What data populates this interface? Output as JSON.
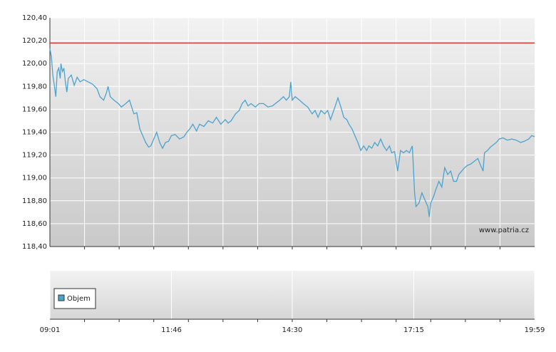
{
  "chart_data": {
    "type": "line",
    "x": [
      "09:01",
      "09:03",
      "09:05",
      "09:07",
      "09:09",
      "09:11",
      "09:13",
      "09:15",
      "09:16",
      "09:18",
      "09:20",
      "09:22",
      "09:24",
      "09:26",
      "09:30",
      "09:34",
      "09:38",
      "09:42",
      "09:47",
      "09:53",
      "09:59",
      "10:05",
      "10:09",
      "10:14",
      "10:18",
      "10:20",
      "10:23",
      "10:28",
      "10:34",
      "10:38",
      "10:44",
      "10:49",
      "10:55",
      "10:59",
      "11:03",
      "11:07",
      "11:11",
      "11:15",
      "11:18",
      "11:22",
      "11:26",
      "11:30",
      "11:34",
      "11:38",
      "11:42",
      "11:46",
      "11:51",
      "11:57",
      "12:03",
      "12:07",
      "12:11",
      "12:15",
      "12:20",
      "12:24",
      "12:30",
      "12:36",
      "12:42",
      "12:47",
      "12:53",
      "12:59",
      "13:03",
      "13:07",
      "13:13",
      "13:18",
      "13:22",
      "13:26",
      "13:30",
      "13:34",
      "13:40",
      "13:45",
      "13:51",
      "13:57",
      "14:03",
      "14:09",
      "14:13",
      "14:18",
      "14:22",
      "14:26",
      "14:28",
      "14:30",
      "14:34",
      "14:40",
      "14:45",
      "14:51",
      "14:57",
      "15:01",
      "15:05",
      "15:09",
      "15:14",
      "15:18",
      "15:22",
      "15:28",
      "15:32",
      "15:36",
      "15:40",
      "15:44",
      "15:47",
      "15:51",
      "15:55",
      "15:59",
      "16:03",
      "16:07",
      "16:11",
      "16:14",
      "16:18",
      "16:22",
      "16:26",
      "16:30",
      "16:34",
      "16:38",
      "16:42",
      "16:45",
      "16:49",
      "16:53",
      "16:57",
      "17:01",
      "17:05",
      "17:09",
      "17:13",
      "17:14",
      "17:16",
      "17:18",
      "17:22",
      "17:26",
      "17:30",
      "17:34",
      "17:36",
      "17:38",
      "17:42",
      "17:45",
      "17:49",
      "17:53",
      "17:57",
      "18:01",
      "18:05",
      "18:09",
      "18:13",
      "18:16",
      "18:20",
      "18:24",
      "18:28",
      "18:32",
      "18:38",
      "18:42",
      "18:45",
      "18:49",
      "18:51",
      "18:55",
      "18:59",
      "19:03",
      "19:07",
      "19:11",
      "19:16",
      "19:22",
      "19:28",
      "19:34",
      "19:40",
      "19:45",
      "19:51",
      "19:55",
      "19:59"
    ],
    "values": [
      120.13,
      120.06,
      119.9,
      119.81,
      119.71,
      119.93,
      119.96,
      119.87,
      120.0,
      119.93,
      119.96,
      119.84,
      119.75,
      119.87,
      119.9,
      119.81,
      119.88,
      119.84,
      119.86,
      119.84,
      119.82,
      119.78,
      119.71,
      119.68,
      119.75,
      119.8,
      119.71,
      119.68,
      119.65,
      119.62,
      119.65,
      119.68,
      119.56,
      119.57,
      119.43,
      119.37,
      119.31,
      119.27,
      119.28,
      119.34,
      119.4,
      119.31,
      119.26,
      119.31,
      119.32,
      119.37,
      119.38,
      119.34,
      119.36,
      119.4,
      119.43,
      119.47,
      119.41,
      119.47,
      119.45,
      119.5,
      119.48,
      119.53,
      119.47,
      119.51,
      119.48,
      119.5,
      119.56,
      119.59,
      119.65,
      119.68,
      119.63,
      119.65,
      119.62,
      119.65,
      119.65,
      119.62,
      119.63,
      119.66,
      119.68,
      119.71,
      119.68,
      119.71,
      119.84,
      119.68,
      119.71,
      119.68,
      119.65,
      119.62,
      119.56,
      119.59,
      119.53,
      119.59,
      119.56,
      119.59,
      119.51,
      119.62,
      119.7,
      119.62,
      119.53,
      119.51,
      119.47,
      119.43,
      119.37,
      119.31,
      119.24,
      119.28,
      119.24,
      119.28,
      119.26,
      119.31,
      119.28,
      119.34,
      119.28,
      119.24,
      119.28,
      119.22,
      119.23,
      119.06,
      119.24,
      119.22,
      119.24,
      119.22,
      119.28,
      119.15,
      118.87,
      118.75,
      118.78,
      118.87,
      118.81,
      118.75,
      118.66,
      118.78,
      118.84,
      118.9,
      118.97,
      118.92,
      119.09,
      119.03,
      119.06,
      118.97,
      118.97,
      119.03,
      119.06,
      119.09,
      119.11,
      119.12,
      119.15,
      119.17,
      119.12,
      119.06,
      119.22,
      119.24,
      119.27,
      119.29,
      119.31,
      119.34,
      119.35,
      119.33,
      119.34,
      119.33,
      119.31,
      119.32,
      119.34,
      119.37,
      119.36
    ],
    "color": "#4ba3cf",
    "reference": 120.18,
    "reference_color": "#d9302c",
    "xlim": [
      "09:01",
      "19:59"
    ],
    "xticks": [
      "09:01",
      "11:46",
      "14:30",
      "17:15",
      "19:59"
    ],
    "xgrid": [
      "09:48",
      "10:35",
      "11:22",
      "12:09",
      "12:56",
      "13:43",
      "14:30",
      "15:17",
      "16:04",
      "16:51",
      "17:38",
      "18:25",
      "19:12"
    ],
    "ylim": [
      118.4,
      120.4
    ],
    "yticks": [
      {
        "value": 118.4,
        "label": "118,40"
      },
      {
        "value": 118.6,
        "label": "118,60"
      },
      {
        "value": 118.8,
        "label": "118,80"
      },
      {
        "value": 119.0,
        "label": "119,00"
      },
      {
        "value": 119.2,
        "label": "119,20"
      },
      {
        "value": 119.4,
        "label": "119,40"
      },
      {
        "value": 119.6,
        "label": "119,60"
      },
      {
        "value": 119.8,
        "label": "119,80"
      },
      {
        "value": 120.0,
        "label": "120,00"
      },
      {
        "value": 120.2,
        "label": "120,20"
      },
      {
        "value": 120.4,
        "label": "120,40"
      }
    ],
    "grid": true,
    "watermark": "www.patria.cz",
    "volume_legend": "Objem",
    "volume_color": "#4ba3cf"
  }
}
